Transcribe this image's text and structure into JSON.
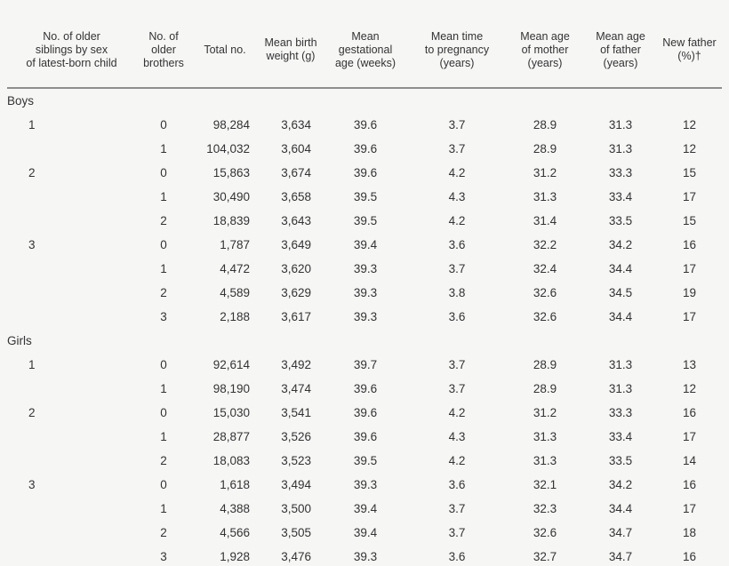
{
  "table": {
    "columns": [
      "No. of older\nsiblings by sex\nof latest-born child",
      "No. of\nolder\nbrothers",
      "Total no.",
      "Mean birth\nweight (g)",
      "Mean\ngestational\nage (weeks)",
      "Mean time\nto pregnancy\n(years)",
      "Mean age\nof mother\n(years)",
      "Mean age\nof father\n(years)",
      "New father\n(%)†"
    ],
    "sections": [
      {
        "label": "Boys",
        "rows": [
          [
            "1",
            "0",
            "98,284",
            "3,634",
            "39.6",
            "3.7",
            "28.9",
            "31.3",
            "12"
          ],
          [
            "",
            "1",
            "104,032",
            "3,604",
            "39.6",
            "3.7",
            "28.9",
            "31.3",
            "12"
          ],
          [
            "2",
            "0",
            "15,863",
            "3,674",
            "39.6",
            "4.2",
            "31.2",
            "33.3",
            "15"
          ],
          [
            "",
            "1",
            "30,490",
            "3,658",
            "39.5",
            "4.3",
            "31.3",
            "33.4",
            "17"
          ],
          [
            "",
            "2",
            "18,839",
            "3,643",
            "39.5",
            "4.2",
            "31.4",
            "33.5",
            "15"
          ],
          [
            "3",
            "0",
            "1,787",
            "3,649",
            "39.4",
            "3.6",
            "32.2",
            "34.2",
            "16"
          ],
          [
            "",
            "1",
            "4,472",
            "3,620",
            "39.3",
            "3.7",
            "32.4",
            "34.4",
            "17"
          ],
          [
            "",
            "2",
            "4,589",
            "3,629",
            "39.3",
            "3.8",
            "32.6",
            "34.5",
            "19"
          ],
          [
            "",
            "3",
            "2,188",
            "3,617",
            "39.3",
            "3.6",
            "32.6",
            "34.4",
            "17"
          ]
        ]
      },
      {
        "label": "Girls",
        "rows": [
          [
            "1",
            "0",
            "92,614",
            "3,492",
            "39.7",
            "3.7",
            "28.9",
            "31.3",
            "13"
          ],
          [
            "",
            "1",
            "98,190",
            "3,474",
            "39.6",
            "3.7",
            "28.9",
            "31.3",
            "12"
          ],
          [
            "2",
            "0",
            "15,030",
            "3,541",
            "39.6",
            "4.2",
            "31.2",
            "33.3",
            "16"
          ],
          [
            "",
            "1",
            "28,877",
            "3,526",
            "39.6",
            "4.3",
            "31.3",
            "33.4",
            "17"
          ],
          [
            "",
            "2",
            "18,083",
            "3,523",
            "39.5",
            "4.2",
            "31.3",
            "33.5",
            "14"
          ],
          [
            "3",
            "0",
            "1,618",
            "3,494",
            "39.3",
            "3.6",
            "32.1",
            "34.2",
            "16"
          ],
          [
            "",
            "1",
            "4,388",
            "3,500",
            "39.4",
            "3.7",
            "32.3",
            "34.4",
            "17"
          ],
          [
            "",
            "2",
            "4,566",
            "3,505",
            "39.4",
            "3.7",
            "32.6",
            "34.7",
            "18"
          ],
          [
            "",
            "3",
            "1,928",
            "3,476",
            "39.3",
            "3.6",
            "32.7",
            "34.7",
            "16"
          ]
        ]
      }
    ]
  }
}
